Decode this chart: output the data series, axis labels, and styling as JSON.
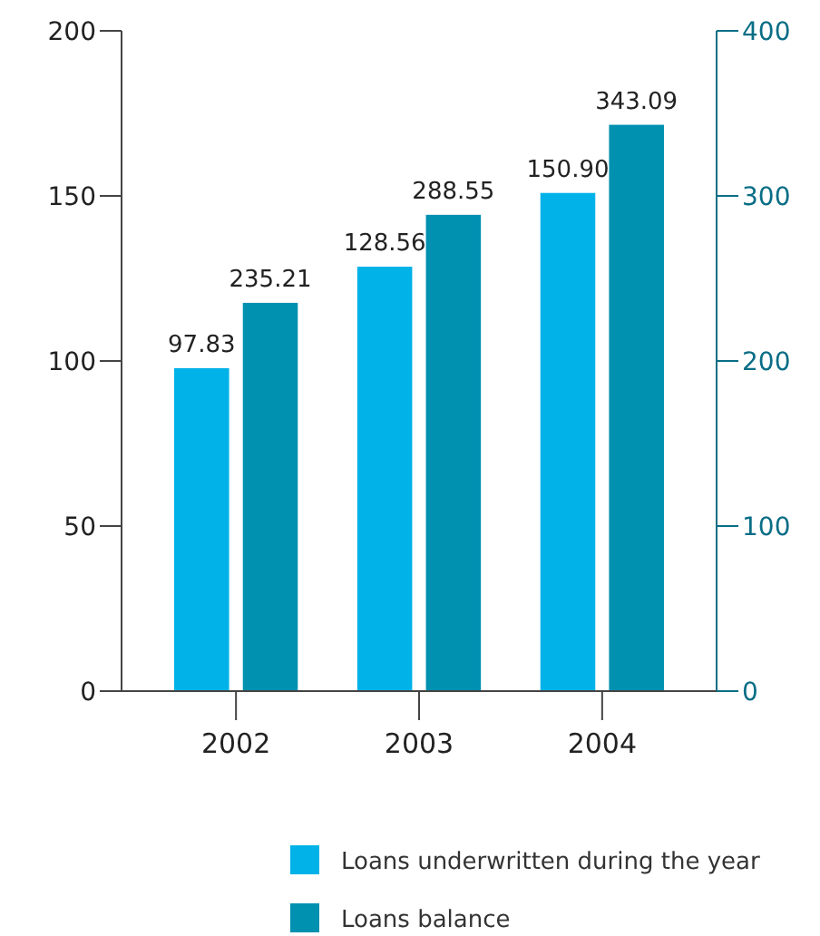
{
  "chart_data": {
    "type": "bar",
    "categories": [
      "2002",
      "2003",
      "2004"
    ],
    "series": [
      {
        "name": "Loans underwritten during the year",
        "color": "#00b2e8",
        "values": [
          97.83,
          128.56,
          150.9
        ],
        "value_labels": [
          "97.83",
          "128.56",
          "150.90"
        ]
      },
      {
        "name": "Loans balance",
        "color": "#0090b0",
        "values": [
          235.21,
          288.55,
          343.09
        ],
        "value_labels": [
          "235.21",
          "288.55",
          "343.09"
        ],
        "axis": "y2"
      }
    ],
    "ylim": [
      0,
      200
    ],
    "yticks": [
      0,
      50,
      100,
      150,
      200
    ],
    "y2lim": [
      0,
      400
    ],
    "y2ticks": [
      0,
      100,
      200,
      300,
      400
    ],
    "legend": "bottom",
    "grid": false
  }
}
